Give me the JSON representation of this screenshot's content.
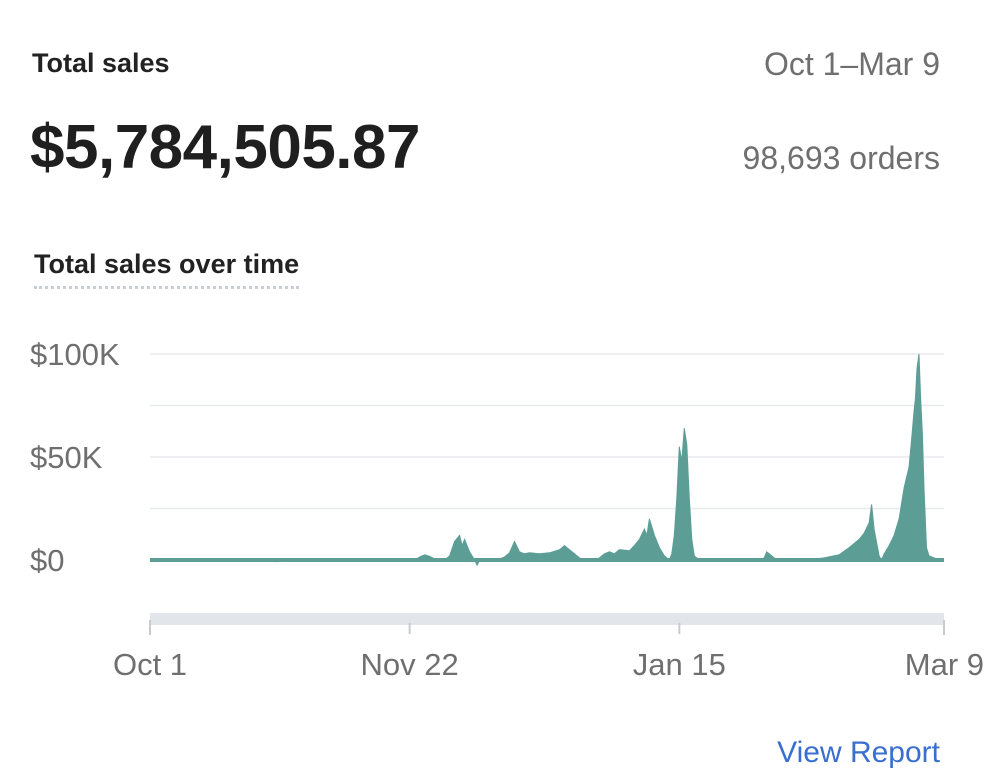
{
  "header": {
    "title": "Total sales",
    "date_range": "Oct 1–Mar 9",
    "total": "$5,784,505.87",
    "orders": "98,693 orders"
  },
  "chart_section": {
    "title": "Total sales over time"
  },
  "footer": {
    "view_report": "View Report"
  },
  "colors": {
    "series": "#5c9e96",
    "grid": "#e8eaed",
    "axis_text": "#6f6f6f",
    "scrollbar": "#e2e5ea"
  },
  "chart_data": {
    "type": "area",
    "title": "Total sales over time",
    "xlabel": "",
    "ylabel": "",
    "ylim": [
      -20000,
      100000
    ],
    "y_ticks": [
      {
        "value": 100000,
        "label": "$100K"
      },
      {
        "value": 50000,
        "label": "$50K"
      },
      {
        "value": 0,
        "label": "$0"
      }
    ],
    "x_ticks": [
      {
        "x": 0,
        "label": "Oct 1"
      },
      {
        "x": 52,
        "label": "Nov 22"
      },
      {
        "x": 106,
        "label": "Jan 15"
      },
      {
        "x": 159,
        "label": "Mar 9"
      }
    ],
    "x_range": [
      0,
      159
    ],
    "grid": true,
    "series": [
      {
        "values": [
          [
            0,
            0
          ],
          [
            10,
            0
          ],
          [
            20,
            0
          ],
          [
            25,
            -800
          ],
          [
            30,
            -600
          ],
          [
            35,
            0
          ],
          [
            40,
            0
          ],
          [
            48,
            0
          ],
          [
            53,
            0
          ],
          [
            54,
            1500
          ],
          [
            55,
            2500
          ],
          [
            56,
            1800
          ],
          [
            57,
            500
          ],
          [
            58,
            0
          ],
          [
            59,
            0
          ],
          [
            60,
            2000
          ],
          [
            61,
            9000
          ],
          [
            62,
            12000
          ],
          [
            62.5,
            7000
          ],
          [
            63,
            10000
          ],
          [
            64,
            4000
          ],
          [
            65,
            0
          ],
          [
            65.5,
            -2500
          ],
          [
            66,
            0
          ],
          [
            68,
            0
          ],
          [
            70,
            500
          ],
          [
            71,
            1500
          ],
          [
            72,
            3500
          ],
          [
            73,
            9000
          ],
          [
            74,
            4000
          ],
          [
            75,
            3000
          ],
          [
            76,
            3500
          ],
          [
            78,
            3000
          ],
          [
            80,
            3500
          ],
          [
            82,
            5000
          ],
          [
            83,
            7000
          ],
          [
            84,
            5000
          ],
          [
            85,
            3000
          ],
          [
            86,
            1000
          ],
          [
            87,
            0
          ],
          [
            89,
            0
          ],
          [
            90,
            1000
          ],
          [
            91,
            3000
          ],
          [
            92,
            4000
          ],
          [
            93,
            3000
          ],
          [
            94,
            5000
          ],
          [
            96,
            4500
          ],
          [
            97,
            7000
          ],
          [
            98,
            10000
          ],
          [
            99,
            15000
          ],
          [
            99.5,
            12000
          ],
          [
            100,
            20000
          ],
          [
            100.5,
            16000
          ],
          [
            101,
            12000
          ],
          [
            102,
            6000
          ],
          [
            103,
            2000
          ],
          [
            104,
            0
          ],
          [
            104.5,
            3000
          ],
          [
            105,
            12000
          ],
          [
            105.5,
            30000
          ],
          [
            106,
            55000
          ],
          [
            106.5,
            48000
          ],
          [
            107,
            64000
          ],
          [
            107.5,
            56000
          ],
          [
            108,
            30000
          ],
          [
            108.5,
            10000
          ],
          [
            109,
            2000
          ],
          [
            110,
            0
          ],
          [
            114,
            0
          ],
          [
            118,
            0
          ],
          [
            122,
            0
          ],
          [
            123,
            1000
          ],
          [
            123.5,
            4000
          ],
          [
            124,
            3000
          ],
          [
            125,
            1000
          ],
          [
            126,
            0
          ],
          [
            128,
            0
          ],
          [
            133,
            500
          ],
          [
            135,
            1000
          ],
          [
            138,
            2500
          ],
          [
            140,
            6000
          ],
          [
            142,
            10000
          ],
          [
            143,
            13000
          ],
          [
            144,
            18000
          ],
          [
            144.5,
            27000
          ],
          [
            145,
            15000
          ],
          [
            146,
            2000
          ],
          [
            146.5,
            0
          ],
          [
            147,
            3000
          ],
          [
            148,
            7000
          ],
          [
            149,
            12000
          ],
          [
            150,
            20000
          ],
          [
            151,
            35000
          ],
          [
            152,
            45000
          ],
          [
            152.5,
            58000
          ],
          [
            153,
            72000
          ],
          [
            153.3,
            79000
          ],
          [
            153.6,
            93000
          ],
          [
            154,
            100000
          ],
          [
            154.3,
            80000
          ],
          [
            154.7,
            60000
          ],
          [
            155,
            35000
          ],
          [
            155.5,
            6000
          ],
          [
            156,
            2000
          ],
          [
            157,
            1000
          ],
          [
            158,
            0
          ],
          [
            159,
            0
          ]
        ]
      }
    ]
  }
}
